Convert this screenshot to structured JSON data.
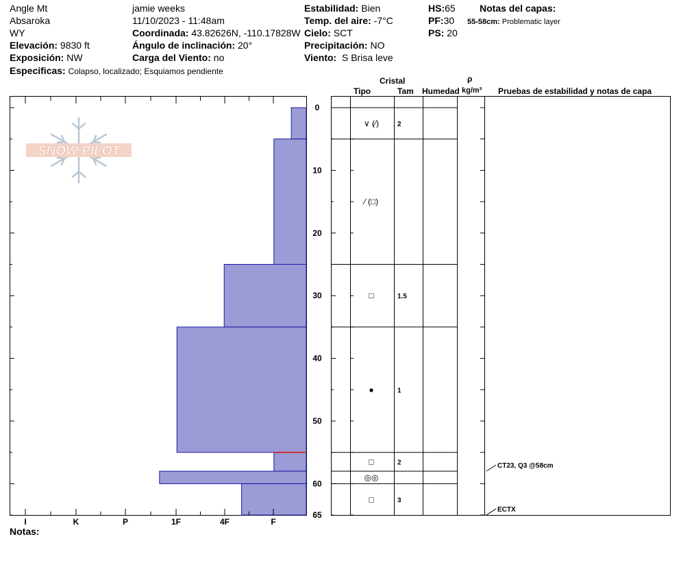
{
  "header": {
    "location": "Angle Mt",
    "range": "Absaroka",
    "state": "WY",
    "elevation_label": "Elevación:",
    "elevation_value": "9830 ft",
    "aspect_label": "Exposición:",
    "aspect_value": "NW",
    "specifics_label": "Especificas:",
    "specifics_value": "Colapso, localizado;  Esquiamos pendiente",
    "observer": "jamie weeks",
    "datetime": "11/10/2023 - 11:48am",
    "coord_label": "Coordinada:",
    "coord_value": "43.82626N, -110.17828W",
    "slope_label": "Ángulo de inclinación:",
    "slope_value": "20°",
    "wind_load_label": "Carga del Viento:",
    "wind_load_value": "no",
    "stability_label": "Estabilidad:",
    "stability_value": "Bien",
    "air_temp_label": "Temp. del aire:",
    "air_temp_value": "-7°C",
    "sky_label": "Cielo:",
    "sky_value": "SCT",
    "precip_label": "Precipitación:",
    "precip_value": "NO",
    "wind_label": "Viento:",
    "wind_value": "S Brisa leve",
    "hs_label": "HS:",
    "hs_value": "65",
    "pf_label": "PF:",
    "pf_value": "30",
    "ps_label": "PS:",
    "ps_value": "20",
    "layer_notes_label": "Notas del capas:",
    "layer_notes_depth": "55-58cm:",
    "layer_notes_text": "Problematic layer"
  },
  "logo": {
    "text": "SNOW PILOT"
  },
  "columns": {
    "crystal": "Cristal",
    "type": "Tipo",
    "size": "Tam",
    "moisture": "Humedad",
    "rho": "ρ",
    "density": "kg/m³",
    "tests": "Pruebas de estabilidad y notas de capa"
  },
  "notes_label": "Notas:",
  "colors": {
    "hardness_fill": "#9b9bd6",
    "hardness_stroke": "#1a1aa6",
    "weak_layer": "#c83232"
  },
  "chart_data": {
    "type": "bar",
    "depth_range": [
      0,
      65
    ],
    "depth_ticks": [
      "0",
      "10",
      "20",
      "30",
      "40",
      "50",
      "60",
      "65"
    ],
    "hardness_ticks": [
      "I",
      "K",
      "P",
      "1F",
      "4F",
      "F"
    ],
    "layers": [
      {
        "top": 0,
        "bottom": 5,
        "hardness": 0.3,
        "grain_type": "∨ (⁄)",
        "grain_size": "2"
      },
      {
        "top": 5,
        "bottom": 25,
        "hardness": 0.65,
        "grain_type": "⁄ (□)",
        "grain_size": ""
      },
      {
        "top": 25,
        "bottom": 35,
        "hardness": 1.65,
        "grain_type": "□",
        "grain_size": "1.5"
      },
      {
        "top": 35,
        "bottom": 55,
        "hardness": 2.6,
        "grain_type": "●",
        "grain_size": "1"
      },
      {
        "top": 55,
        "bottom": 58,
        "hardness": 0.65,
        "grain_type": "□",
        "grain_size": "2"
      },
      {
        "top": 58,
        "bottom": 60,
        "hardness": 2.95,
        "grain_type": "◎◎",
        "grain_size": ""
      },
      {
        "top": 60,
        "bottom": 65,
        "hardness": 1.3,
        "grain_type": "□",
        "grain_size": "3"
      }
    ],
    "weak_layer_depth": 55,
    "tests": [
      {
        "depth": 58,
        "label": "CT23, Q3 @58cm"
      },
      {
        "depth": 65,
        "label": "ECTX"
      }
    ]
  }
}
